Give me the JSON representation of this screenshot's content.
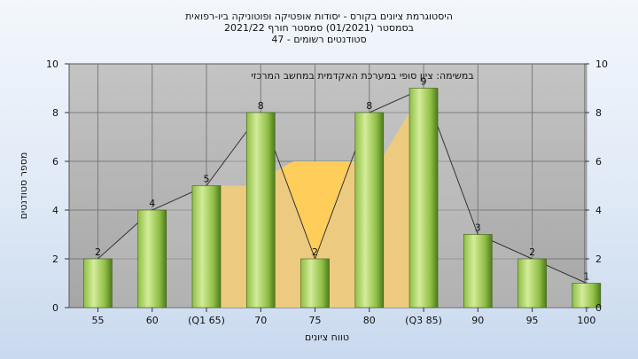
{
  "chart_data": {
    "type": "bar",
    "title_lines": [
      "היסטוגרמת ציונים בקורס - יסודות אופטיקה ופוטוניקה ביו-רפואית",
      "בסמסטר  (01/2021)  סמסטר חורף  2021/22",
      "סטודנטים רשומים - 47"
    ],
    "annotation": "במשימה: ציון סופי במערכת האקדמית במחשב המרכזי",
    "xlabel": "טווח ציונים",
    "ylabel": "מספר סטודנטים",
    "ylim": [
      0,
      10
    ],
    "y_ticks": [
      "0",
      "2",
      "4",
      "6",
      "8",
      "10"
    ],
    "categories": [
      "55",
      "60",
      "(Q1 65)",
      "70",
      "75",
      "80",
      "(Q3 85)",
      "90",
      "95",
      "100"
    ],
    "values": [
      2,
      4,
      5,
      8,
      2,
      8,
      9,
      3,
      2,
      1
    ],
    "value_labels": [
      "2",
      "4",
      "5",
      "8",
      "2",
      "8",
      "9",
      "3",
      "2",
      "1"
    ],
    "quartile_area": {
      "from_category": "(Q1 65)",
      "to_category": "(Q3 85)",
      "levels": [
        5,
        5,
        6,
        6,
        6,
        9
      ]
    },
    "grid": true,
    "colors": {
      "plot_bg": "#b3b3b3",
      "bar_light": "#d4ec9a",
      "bar_mid": "#8fbf45",
      "bar_dark": "#4e7a1c",
      "area": "#ffcd5a",
      "grid": "#7a7a7a"
    }
  }
}
